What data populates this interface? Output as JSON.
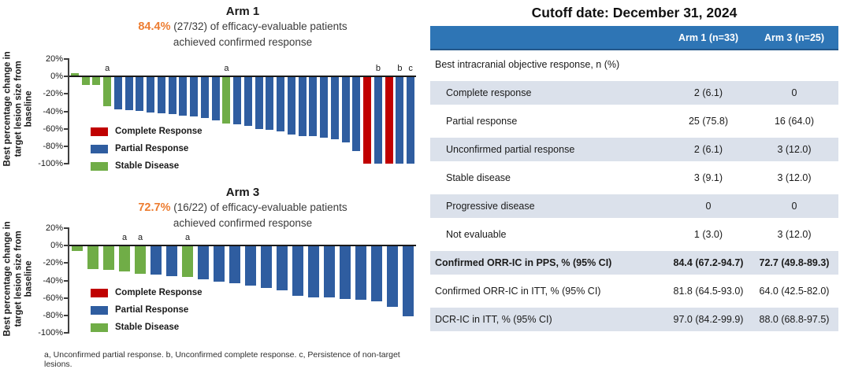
{
  "colors": {
    "red": "#C00000",
    "blue": "#2F5DA0",
    "green": "#70AD47",
    "accent_orange": "#ED7D31",
    "header_blue": "#2E75B5",
    "row_shade": "#DBE1EB"
  },
  "chart_data": [
    {
      "type": "bar",
      "title": "Arm 1",
      "subtitle_highlight": "84.4%",
      "subtitle": "(27/32) of efficacy-evaluable patients",
      "subtitle_line2": "achieved confirmed response",
      "ylabel": "Best percentage change in target lesion size from baseline",
      "ylim": [
        -100,
        20
      ],
      "yticks": [
        20,
        0,
        -20,
        -40,
        -60,
        -80,
        -100
      ],
      "legend": [
        {
          "label": "Complete Response",
          "color": "red"
        },
        {
          "label": "Partial Response",
          "color": "blue"
        },
        {
          "label": "Stable Disease",
          "color": "green"
        }
      ],
      "bars": [
        {
          "v": 4,
          "c": "green"
        },
        {
          "v": -10,
          "c": "green"
        },
        {
          "v": -10,
          "c": "green"
        },
        {
          "v": -34,
          "c": "green",
          "n": "a"
        },
        {
          "v": -38,
          "c": "blue"
        },
        {
          "v": -39,
          "c": "blue"
        },
        {
          "v": -40,
          "c": "blue"
        },
        {
          "v": -41,
          "c": "blue"
        },
        {
          "v": -42,
          "c": "blue"
        },
        {
          "v": -43,
          "c": "blue"
        },
        {
          "v": -45,
          "c": "blue"
        },
        {
          "v": -46,
          "c": "blue"
        },
        {
          "v": -48,
          "c": "blue"
        },
        {
          "v": -50,
          "c": "blue"
        },
        {
          "v": -54,
          "c": "green",
          "n": "a"
        },
        {
          "v": -55,
          "c": "blue"
        },
        {
          "v": -57,
          "c": "blue"
        },
        {
          "v": -60,
          "c": "blue"
        },
        {
          "v": -61,
          "c": "blue"
        },
        {
          "v": -63,
          "c": "blue"
        },
        {
          "v": -67,
          "c": "blue"
        },
        {
          "v": -68,
          "c": "blue"
        },
        {
          "v": -68,
          "c": "blue"
        },
        {
          "v": -70,
          "c": "blue"
        },
        {
          "v": -72,
          "c": "blue"
        },
        {
          "v": -76,
          "c": "blue"
        },
        {
          "v": -86,
          "c": "blue"
        },
        {
          "v": -100,
          "c": "red"
        },
        {
          "v": -100,
          "c": "blue",
          "n": "b"
        },
        {
          "v": -100,
          "c": "red"
        },
        {
          "v": -100,
          "c": "blue",
          "n": "b"
        },
        {
          "v": -100,
          "c": "blue",
          "n": "c"
        }
      ]
    },
    {
      "type": "bar",
      "title": "Arm 3",
      "subtitle_highlight": "72.7%",
      "subtitle": "(16/22) of efficacy-evaluable patients",
      "subtitle_line2": "achieved confirmed response",
      "ylabel": "Best percentage change in target lesion size from baseline",
      "ylim": [
        -100,
        20
      ],
      "yticks": [
        20,
        0,
        -20,
        -40,
        -60,
        -80,
        -100
      ],
      "legend": [
        {
          "label": "Complete Response",
          "color": "red"
        },
        {
          "label": "Partial Response",
          "color": "blue"
        },
        {
          "label": "Stable Disease",
          "color": "green"
        }
      ],
      "bars": [
        {
          "v": -6,
          "c": "green"
        },
        {
          "v": -27,
          "c": "green"
        },
        {
          "v": -28,
          "c": "green"
        },
        {
          "v": -30,
          "c": "green",
          "n": "a"
        },
        {
          "v": -32,
          "c": "green",
          "n": "a"
        },
        {
          "v": -33,
          "c": "blue"
        },
        {
          "v": -35,
          "c": "blue"
        },
        {
          "v": -36,
          "c": "green",
          "n": "a"
        },
        {
          "v": -39,
          "c": "blue"
        },
        {
          "v": -41,
          "c": "blue"
        },
        {
          "v": -43,
          "c": "blue"
        },
        {
          "v": -46,
          "c": "blue"
        },
        {
          "v": -49,
          "c": "blue"
        },
        {
          "v": -51,
          "c": "blue"
        },
        {
          "v": -58,
          "c": "blue"
        },
        {
          "v": -59,
          "c": "blue"
        },
        {
          "v": -59,
          "c": "blue"
        },
        {
          "v": -61,
          "c": "blue"
        },
        {
          "v": -62,
          "c": "blue"
        },
        {
          "v": -64,
          "c": "blue"
        },
        {
          "v": -70,
          "c": "blue"
        },
        {
          "v": -81,
          "c": "blue"
        }
      ]
    }
  ],
  "footnote": "a, Unconfirmed partial response. b, Unconfirmed complete response. c, Persistence of non-target lesions.",
  "table": {
    "title": "Cutoff date: December 31, 2024",
    "columns": [
      "",
      "Arm 1 (n=33)",
      "Arm 3 (n=25)"
    ],
    "section": "Best intracranial objective response, n (%)",
    "rows": [
      {
        "label": "Complete response",
        "arm1": "2 (6.1)",
        "arm3": "0",
        "indent": true,
        "shaded": true,
        "bold": false
      },
      {
        "label": "Partial response",
        "arm1": "25 (75.8)",
        "arm3": "16 (64.0)",
        "indent": true,
        "shaded": false,
        "bold": false
      },
      {
        "label": "Unconfirmed partial response",
        "arm1": "2 (6.1)",
        "arm3": "3 (12.0)",
        "indent": true,
        "shaded": true,
        "bold": false
      },
      {
        "label": "Stable disease",
        "arm1": "3 (9.1)",
        "arm3": "3 (12.0)",
        "indent": true,
        "shaded": false,
        "bold": false
      },
      {
        "label": "Progressive disease",
        "arm1": "0",
        "arm3": "0",
        "indent": true,
        "shaded": true,
        "bold": false
      },
      {
        "label": "Not evaluable",
        "arm1": "1 (3.0)",
        "arm3": "3 (12.0)",
        "indent": true,
        "shaded": false,
        "bold": false
      },
      {
        "label": "Confirmed ORR-IC in PPS, % (95% CI)",
        "arm1": "84.4 (67.2-94.7)",
        "arm3": "72.7 (49.8-89.3)",
        "indent": false,
        "shaded": true,
        "bold": true
      },
      {
        "label": "Confirmed ORR-IC in ITT, % (95% CI)",
        "arm1": "81.8 (64.5-93.0)",
        "arm3": "64.0 (42.5-82.0)",
        "indent": false,
        "shaded": false,
        "bold": false
      },
      {
        "label": "DCR-IC in ITT, % (95% CI)",
        "arm1": "97.0 (84.2-99.9)",
        "arm3": "88.0 (68.8-97.5)",
        "indent": false,
        "shaded": true,
        "bold": false
      }
    ]
  }
}
